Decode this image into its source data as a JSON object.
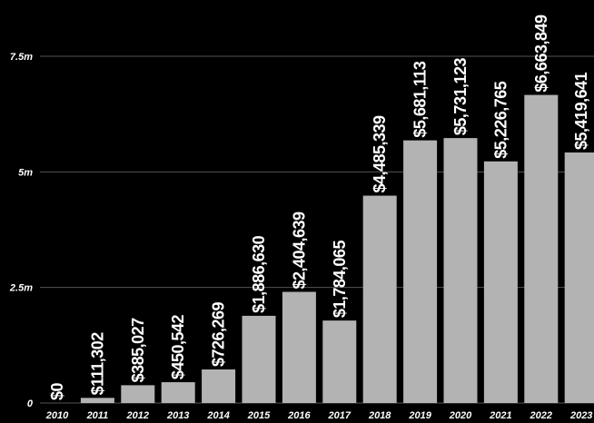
{
  "chart_data": {
    "type": "bar",
    "title": "",
    "xlabel": "",
    "ylabel": "",
    "categories": [
      "2010",
      "2011",
      "2012",
      "2013",
      "2014",
      "2015",
      "2016",
      "2017",
      "2018",
      "2019",
      "2020",
      "2021",
      "2022",
      "2023"
    ],
    "values": [
      0,
      111302,
      385027,
      450542,
      726269,
      1886630,
      2404639,
      1784065,
      4485339,
      5681113,
      5731123,
      5226765,
      6663849,
      5419641
    ],
    "data_labels": [
      "$0",
      "$111,302",
      "$385,027",
      "$450,542",
      "$726,269",
      "$1,886,630",
      "$2,404,639",
      "$1,784,065",
      "$4,485,339",
      "$5,681,113",
      "$5,731,123",
      "$5,226,765",
      "$6,663,849",
      "$5,419,641"
    ],
    "ylim": [
      0,
      7500000
    ],
    "yticks": [
      0,
      2500000,
      5000000,
      7500000
    ],
    "ytick_labels": [
      "0",
      "2.5m",
      "5m",
      "7.5m"
    ],
    "grid": true,
    "legend": "none",
    "colors": {
      "background": "#000000",
      "bar": "#b3b3b3",
      "text": "#ffffff",
      "grid": "#555555"
    }
  }
}
